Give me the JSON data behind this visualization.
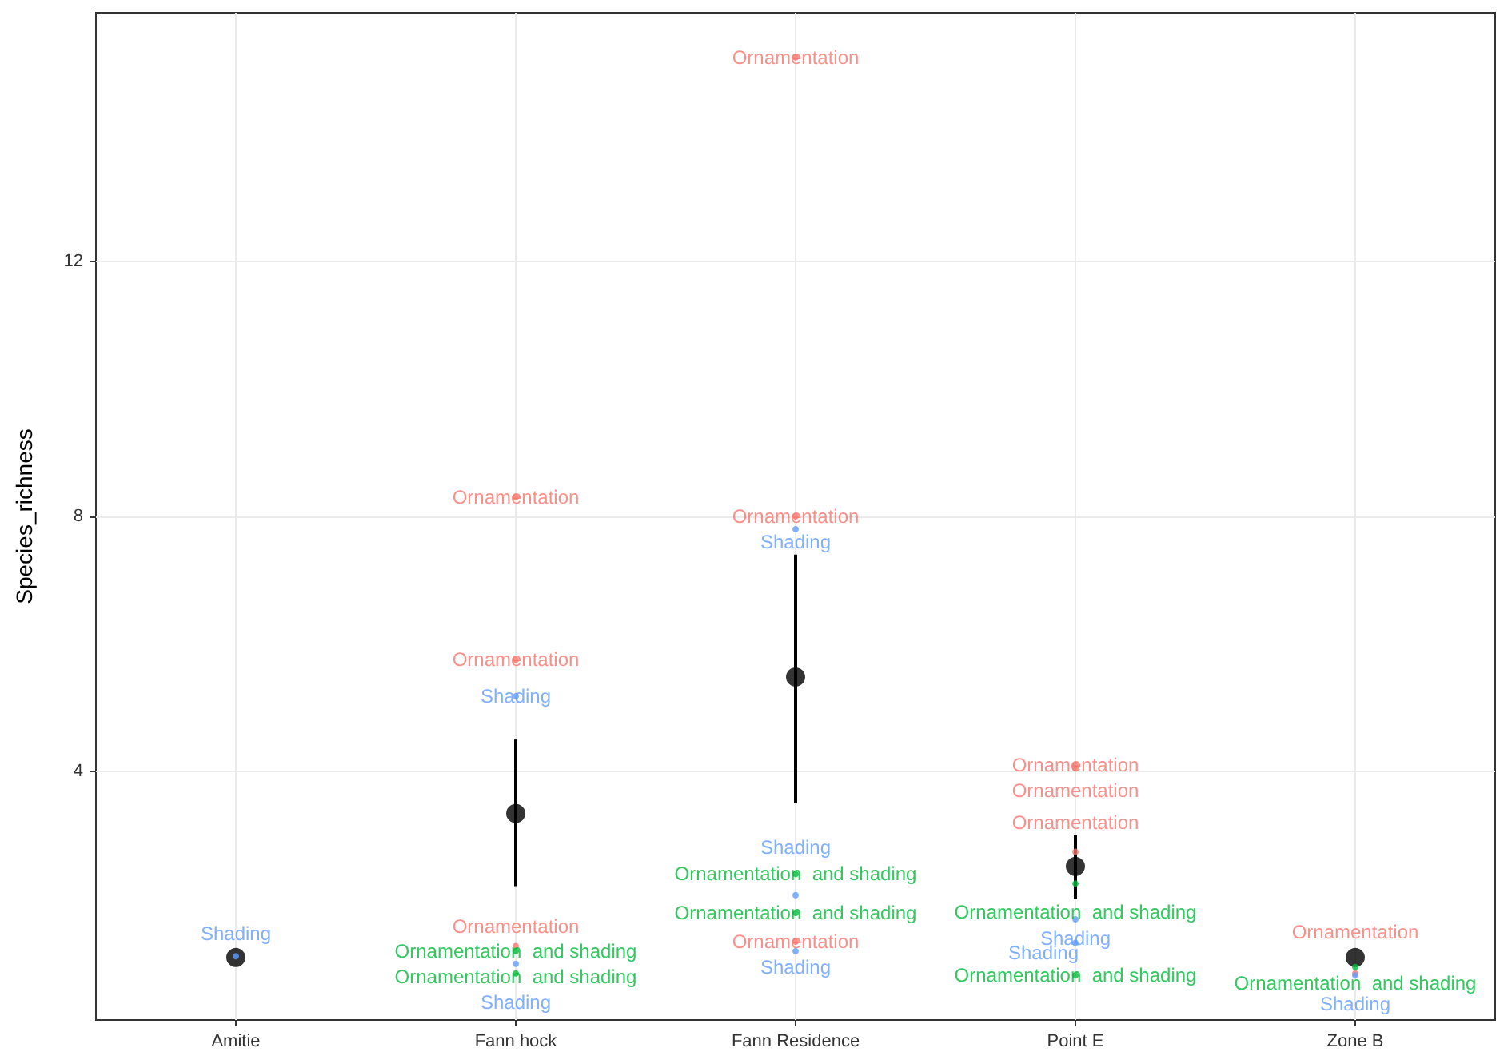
{
  "chart_data": {
    "type": "scatter",
    "ylabel": "Species_richness",
    "categories": [
      "Amitie",
      "Fann hock",
      "Fann Residence",
      "Point E",
      "Zone B"
    ],
    "ylim": [
      0.1,
      15.9
    ],
    "yticks": [
      4,
      8,
      12
    ],
    "grid": true,
    "series": [
      {
        "color": "#f8766d",
        "marker": "circle",
        "x": [
          "Fann Residence",
          "Fann hock",
          "Fann Residence",
          "Fann hock",
          "Point E",
          "Point E",
          "Point E",
          "Fann Residence",
          "Fann hock",
          "Zone B"
        ],
        "values": [
          15.2,
          8.3,
          8.0,
          5.75,
          4.1,
          4.05,
          2.74,
          1.33,
          1.26,
          0.83
        ],
        "value_labels": [
          "Ornamentation",
          "Ornamentation",
          "Ornamentation",
          "Ornamentation",
          "Ornamentation",
          "Ornamentation",
          "Ornamentation",
          "Ornamentation",
          "Ornamentation",
          "Ornamentation"
        ]
      },
      {
        "color": "#619cff",
        "marker": "circle",
        "x": [
          "Amitie",
          "Fann hock",
          "Fann Residence",
          "Fann Residence",
          "Point E",
          "Point E",
          "Fann hock",
          "Fann Residence",
          "Zone B"
        ],
        "values": [
          1.1,
          5.18,
          7.8,
          2.06,
          1.68,
          1.31,
          0.98,
          1.18,
          0.8
        ],
        "value_labels": [
          "Shading",
          "Shading",
          "Shading",
          "Shading",
          "Shading",
          "Shading",
          "Shading",
          "Shading",
          "Shading"
        ]
      },
      {
        "color": "#00ba38",
        "marker": "circle",
        "x": [
          "Fann Residence",
          "Fann Residence",
          "Point E",
          "Fann hock",
          "Fann hock",
          "Point E",
          "Zone B"
        ],
        "values": [
          1.78,
          2.39,
          2.24,
          1.18,
          0.83,
          0.8,
          0.93
        ],
        "value_labels": [
          "Ornamentation  and shading",
          "Ornamentation  and shading",
          "Ornamentation  and shading",
          "Ornamentation  and shading",
          "Ornamentation  and shading",
          "Ornamentation  and shading",
          "Ornamentation  and shading"
        ]
      },
      {
        "color": "#000000",
        "marker": "circle",
        "x": [
          "Amitie",
          "Fann hock",
          "Fann Residence",
          "Point E",
          "Zone B"
        ],
        "values": [
          1.08,
          3.34,
          5.48,
          2.51,
          1.08
        ],
        "errors": [
          null,
          [
            2.2,
            4.5
          ],
          [
            3.5,
            7.4
          ],
          [
            2.0,
            3.0
          ],
          null
        ]
      }
    ]
  }
}
